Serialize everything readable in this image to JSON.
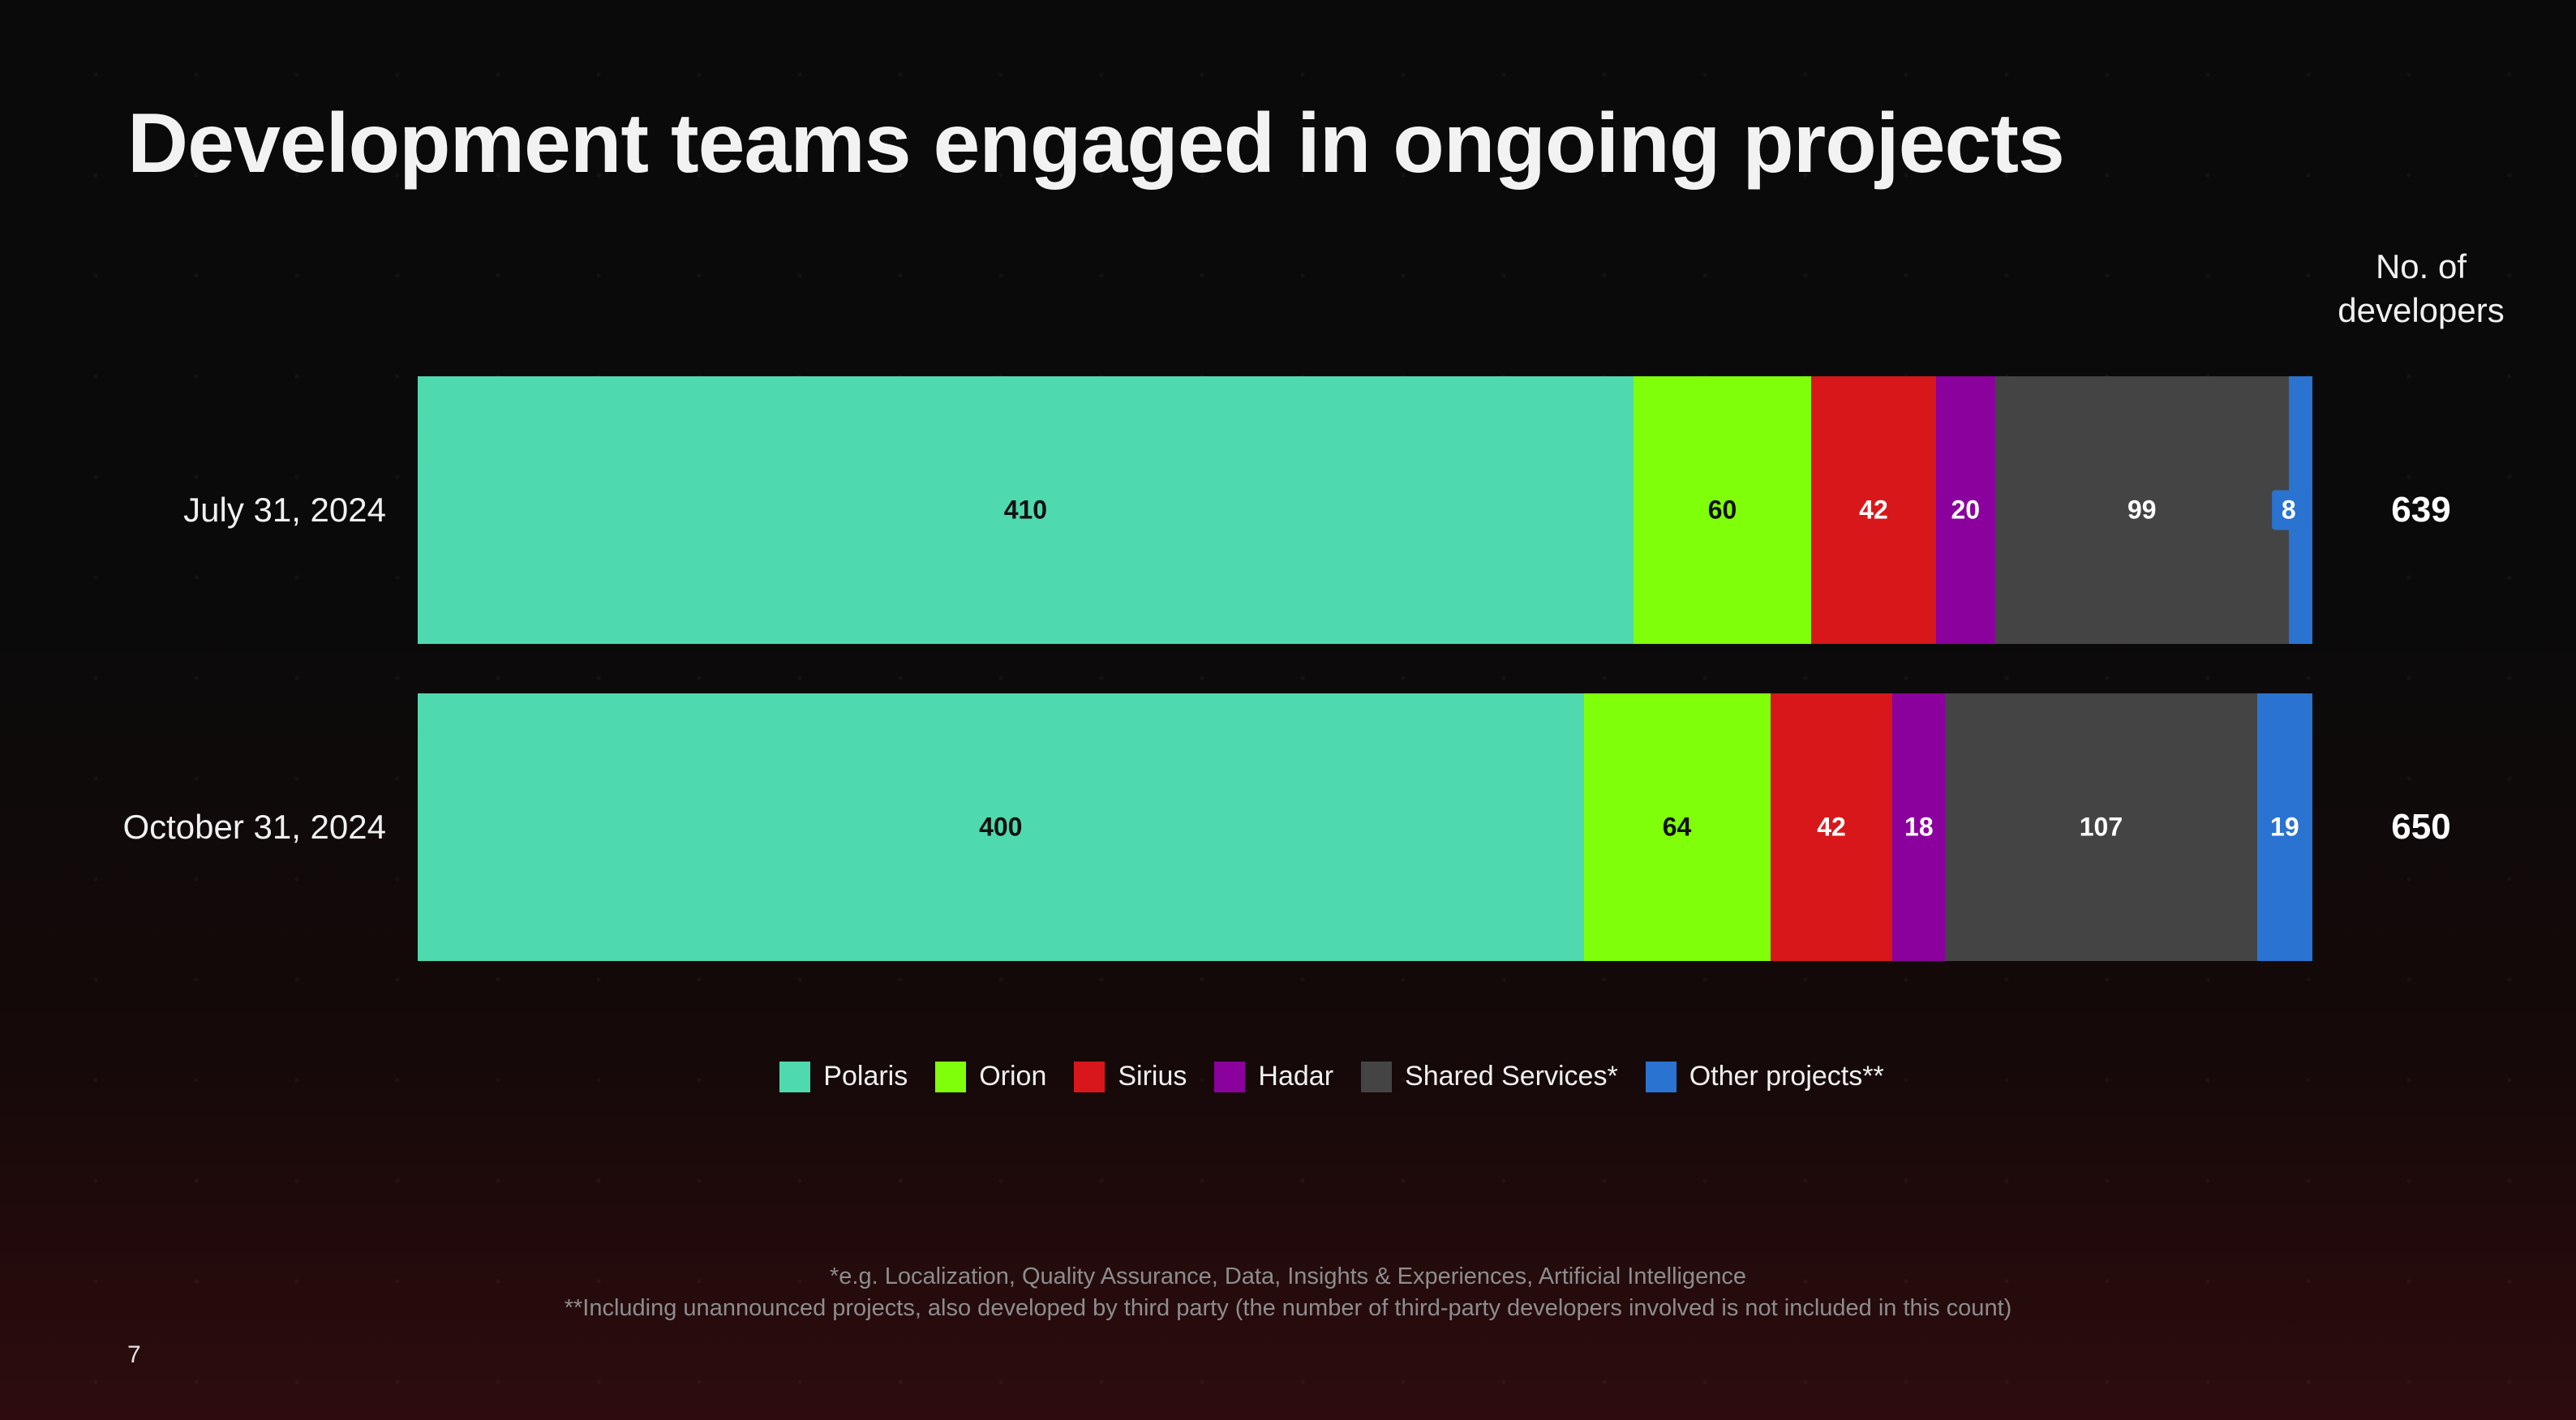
{
  "title": "Development teams engaged in ongoing projects",
  "total_header": [
    "No. of",
    "developers"
  ],
  "chart_data": {
    "type": "bar",
    "orientation": "horizontal",
    "stacked": true,
    "categories": [
      "July 31, 2024",
      "October 31, 2024"
    ],
    "series": [
      {
        "name": "Polaris",
        "color": "#4fd9ae",
        "label_color": "#111111",
        "values": [
          410,
          400
        ]
      },
      {
        "name": "Orion",
        "color": "#80ff0a",
        "label_color": "#111111",
        "values": [
          60,
          64
        ]
      },
      {
        "name": "Sirius",
        "color": "#d8171a",
        "label_color": "#ffffff",
        "values": [
          42,
          42
        ]
      },
      {
        "name": "Hadar",
        "color": "#8b019d",
        "label_color": "#ffffff",
        "values": [
          20,
          18
        ]
      },
      {
        "name": "Shared Services*",
        "color": "#444444",
        "label_color": "#ffffff",
        "values": [
          99,
          107
        ]
      },
      {
        "name": "Other projects**",
        "color": "#2a73d0",
        "label_color": "#ffffff",
        "values": [
          8,
          19
        ]
      }
    ],
    "totals": [
      639,
      650
    ],
    "legend_position": "bottom",
    "grid": false
  },
  "footnotes": [
    "*e.g. Localization, Quality Assurance, Data, Insights & Experiences, Artificial Intelligence",
    "**Including unannounced projects, also developed by third party (the number of third-party developers involved is not included in this count)"
  ],
  "page_number": "7"
}
